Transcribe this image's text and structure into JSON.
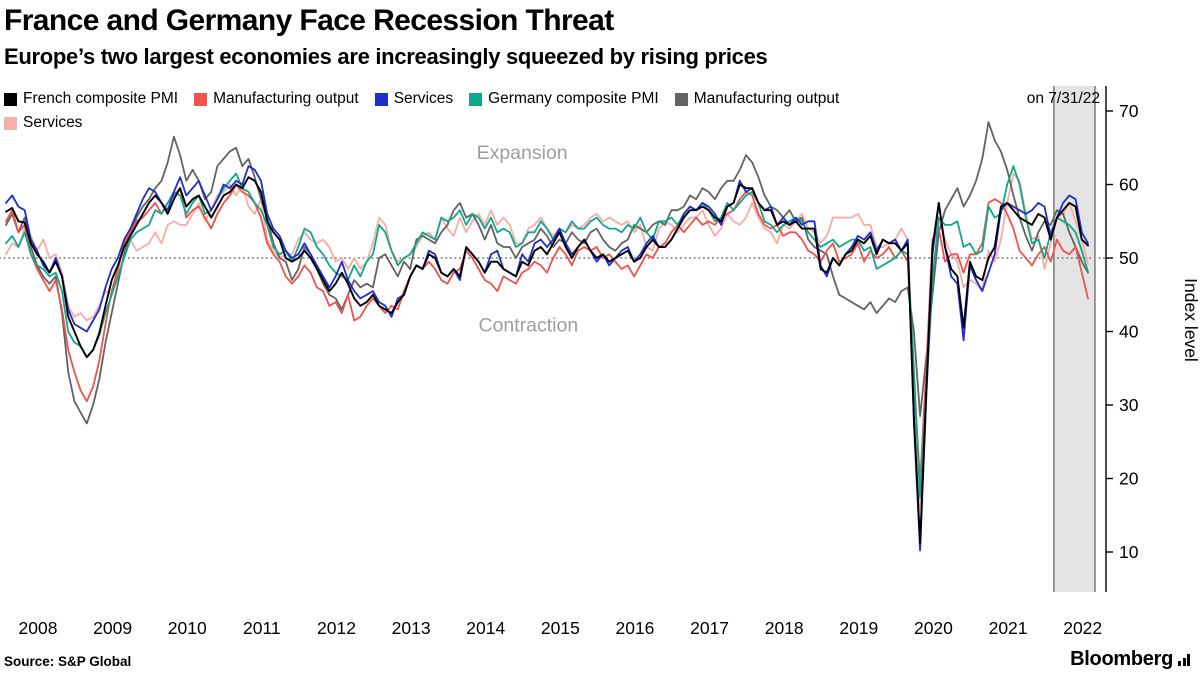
{
  "header": {
    "title": "France and Germany Face Recession Threat",
    "subtitle": "Europe’s two largest economies are increasingly squeezed by rising prices"
  },
  "legend": {
    "asof": "on 7/31/22"
  },
  "footer": {
    "source": "Source: S&P Global",
    "brand": "Bloomberg"
  },
  "chart_data": {
    "type": "line",
    "title": "France and Germany Face Recession Threat",
    "subtitle": "Europe’s two largest economies are increasingly squeezed by rising prices",
    "x": {
      "start": "2008-01",
      "end": "2022-07",
      "frequency": "monthly"
    },
    "years": [
      2008,
      2009,
      2010,
      2011,
      2012,
      2013,
      2014,
      2015,
      2016,
      2017,
      2018,
      2019,
      2020,
      2021,
      2022
    ],
    "yticks": [
      10,
      20,
      30,
      40,
      50,
      60,
      70
    ],
    "ylim": [
      8,
      73
    ],
    "ylabel": "Index level",
    "reference_line": 50,
    "grid": "off",
    "legend_position": "top",
    "as_of_label": "on 7/31/22",
    "annotations": [
      {
        "text": "Expansion",
        "month_index": 83,
        "value": 63.5
      },
      {
        "text": "Contraction",
        "month_index": 84,
        "value": 40.0
      }
    ],
    "highlight_band": {
      "start_index": 169,
      "color": "#e4e4e4",
      "border_color": "#3c3c3c"
    },
    "draw_order": [
      5,
      4,
      1,
      3,
      2,
      0
    ],
    "series": [
      {
        "name": "French composite PMI",
        "color": "#000000",
        "width": 1.9,
        "values": [
          56.3,
          56.8,
          55.0,
          54.8,
          52.0,
          50.5,
          49.5,
          48.0,
          49.5,
          47.5,
          42.0,
          40.0,
          38.0,
          36.5,
          37.5,
          39.8,
          43.5,
          47.0,
          49.0,
          51.5,
          53.0,
          54.5,
          56.0,
          57.5,
          58.5,
          57.5,
          56.0,
          58.0,
          59.5,
          57.0,
          58.0,
          58.5,
          57.0,
          55.5,
          57.0,
          58.5,
          59.0,
          60.0,
          59.5,
          61.0,
          60.5,
          59.0,
          55.0,
          53.5,
          52.5,
          50.0,
          49.5,
          50.0,
          51.0,
          50.0,
          48.5,
          47.0,
          45.5,
          46.5,
          48.0,
          46.5,
          44.5,
          43.5,
          44.0,
          45.0,
          43.5,
          43.0,
          42.5,
          44.0,
          45.0,
          47.5,
          49.0,
          48.5,
          50.5,
          50.0,
          48.0,
          47.5,
          48.5,
          47.5,
          51.5,
          50.5,
          49.5,
          48.0,
          49.5,
          49.5,
          48.5,
          48.0,
          47.5,
          49.5,
          49.0,
          51.0,
          51.5,
          50.5,
          52.0,
          53.5,
          51.5,
          50.0,
          51.5,
          52.5,
          51.0,
          50.0,
          50.5,
          49.5,
          50.0,
          50.5,
          51.0,
          49.5,
          50.0,
          51.5,
          52.5,
          51.5,
          51.5,
          52.5,
          54.0,
          55.5,
          56.5,
          56.5,
          57.0,
          56.5,
          55.5,
          55.0,
          57.0,
          57.5,
          60.0,
          59.5,
          59.5,
          57.5,
          56.5,
          56.5,
          54.5,
          55.0,
          54.5,
          55.0,
          54.0,
          54.0,
          54.0,
          48.5,
          48.0,
          50.0,
          49.0,
          50.5,
          51.0,
          52.5,
          52.0,
          53.0,
          50.5,
          52.5,
          52.0,
          52.0,
          51.0,
          52.0,
          28.5,
          11.2,
          32.0,
          51.5,
          57.5,
          51.5,
          48.5,
          47.5,
          40.5,
          49.5,
          47.5,
          47.0,
          50.0,
          51.5,
          57.0,
          57.5,
          56.5,
          55.5,
          55.0,
          54.5,
          56.0,
          55.5,
          52.5,
          55.5,
          56.5,
          57.5,
          57.0,
          52.5,
          51.7
        ]
      },
      {
        "name": "Manufacturing output",
        "color": "#f0524c",
        "width": 1.8,
        "values": [
          55.0,
          56.5,
          53.5,
          54.5,
          50.5,
          48.5,
          47.0,
          45.5,
          47.0,
          43.0,
          37.5,
          34.5,
          32.0,
          30.5,
          32.5,
          36.0,
          41.0,
          45.5,
          48.5,
          52.0,
          53.5,
          55.0,
          55.5,
          56.5,
          57.5,
          56.0,
          57.5,
          58.5,
          59.5,
          55.5,
          56.5,
          57.0,
          55.5,
          54.0,
          56.0,
          57.5,
          58.5,
          60.0,
          59.0,
          58.5,
          57.5,
          55.5,
          52.0,
          50.5,
          49.5,
          47.5,
          46.5,
          47.5,
          49.0,
          48.0,
          46.0,
          45.5,
          43.5,
          44.0,
          42.5,
          45.0,
          41.5,
          42.0,
          43.5,
          44.5,
          43.5,
          42.5,
          43.5,
          43.0,
          45.5,
          47.5,
          49.0,
          48.5,
          49.5,
          48.5,
          47.0,
          46.5,
          48.0,
          48.5,
          51.0,
          50.0,
          48.5,
          47.0,
          46.5,
          45.5,
          47.5,
          47.0,
          46.5,
          48.0,
          48.5,
          49.5,
          49.0,
          48.0,
          50.0,
          51.5,
          50.5,
          49.0,
          51.0,
          51.5,
          51.0,
          51.5,
          50.0,
          50.5,
          49.5,
          48.5,
          49.0,
          47.5,
          49.0,
          50.5,
          50.0,
          51.5,
          52.0,
          53.5,
          54.5,
          53.5,
          54.5,
          55.5,
          54.5,
          55.0,
          54.5,
          55.5,
          56.0,
          56.5,
          58.0,
          59.0,
          58.5,
          56.0,
          54.5,
          54.0,
          54.5,
          53.0,
          53.5,
          53.5,
          52.5,
          51.0,
          50.5,
          49.5,
          51.0,
          52.0,
          49.5,
          50.0,
          50.5,
          52.0,
          49.5,
          51.0,
          50.0,
          50.5,
          51.5,
          50.0,
          51.0,
          49.5,
          33.5,
          19.5,
          35.0,
          52.5,
          54.0,
          49.5,
          50.5,
          50.5,
          48.0,
          50.5,
          50.5,
          52.0,
          57.5,
          58.0,
          57.5,
          56.0,
          54.0,
          51.0,
          50.0,
          49.0,
          50.5,
          51.5,
          49.5,
          52.5,
          51.0,
          50.5,
          51.5,
          48.0,
          44.5
        ]
      },
      {
        "name": "Services",
        "color": "#1f2dce",
        "width": 1.8,
        "values": [
          57.5,
          58.5,
          57.0,
          56.5,
          52.5,
          51.0,
          49.0,
          48.0,
          50.0,
          47.5,
          43.0,
          41.0,
          40.5,
          40.0,
          41.5,
          43.0,
          46.0,
          48.5,
          50.0,
          52.5,
          54.0,
          56.0,
          58.0,
          59.5,
          59.0,
          57.5,
          56.5,
          59.0,
          61.0,
          58.5,
          59.5,
          60.5,
          58.5,
          56.5,
          58.0,
          60.0,
          59.5,
          60.5,
          60.0,
          62.5,
          62.0,
          60.5,
          56.0,
          54.0,
          53.0,
          51.0,
          50.0,
          50.5,
          52.0,
          50.5,
          49.0,
          47.5,
          46.0,
          47.5,
          49.5,
          47.0,
          45.5,
          44.5,
          45.0,
          45.5,
          44.0,
          43.5,
          42.0,
          44.5,
          45.0,
          47.5,
          49.0,
          48.5,
          51.0,
          50.5,
          48.0,
          47.5,
          48.5,
          47.0,
          51.5,
          50.5,
          49.5,
          48.0,
          50.5,
          51.0,
          48.5,
          48.0,
          47.5,
          50.5,
          49.5,
          52.0,
          52.5,
          51.5,
          52.5,
          54.0,
          52.0,
          50.5,
          51.5,
          52.5,
          51.0,
          49.5,
          50.5,
          49.0,
          50.0,
          51.0,
          51.5,
          49.5,
          50.5,
          52.0,
          53.0,
          51.5,
          51.5,
          52.5,
          54.0,
          56.0,
          57.0,
          56.5,
          57.5,
          57.0,
          56.0,
          54.5,
          57.0,
          57.5,
          60.5,
          59.0,
          59.5,
          57.5,
          56.5,
          57.0,
          54.5,
          55.5,
          54.5,
          55.5,
          54.5,
          55.0,
          55.0,
          49.0,
          47.5,
          50.0,
          49.0,
          50.5,
          51.5,
          53.0,
          52.5,
          53.5,
          51.0,
          52.5,
          52.0,
          52.5,
          51.0,
          52.5,
          27.5,
          10.2,
          31.0,
          50.5,
          57.5,
          51.5,
          47.5,
          46.5,
          38.8,
          49.0,
          47.0,
          45.5,
          48.0,
          50.5,
          56.5,
          57.5,
          57.0,
          56.5,
          56.0,
          56.5,
          57.5,
          57.0,
          53.0,
          55.5,
          57.5,
          58.5,
          58.0,
          53.5,
          52.0
        ]
      },
      {
        "name": "Germany composite PMI",
        "color": "#0ea88a",
        "width": 1.8,
        "values": [
          52.0,
          53.0,
          51.5,
          53.5,
          50.5,
          49.0,
          48.5,
          47.5,
          48.0,
          45.5,
          40.0,
          38.5,
          38.0,
          36.5,
          37.5,
          39.5,
          42.5,
          45.0,
          47.5,
          50.0,
          52.5,
          53.5,
          54.0,
          54.5,
          56.5,
          56.0,
          57.5,
          59.0,
          58.5,
          56.0,
          57.5,
          58.5,
          56.0,
          56.5,
          58.0,
          59.5,
          60.5,
          61.5,
          59.5,
          59.0,
          57.5,
          56.5,
          54.5,
          51.5,
          50.5,
          51.0,
          49.5,
          51.5,
          54.0,
          53.5,
          51.5,
          50.5,
          49.0,
          48.0,
          47.5,
          47.0,
          49.0,
          47.5,
          49.5,
          50.5,
          54.5,
          53.5,
          51.0,
          49.0,
          50.0,
          50.5,
          52.0,
          53.5,
          53.0,
          52.5,
          55.5,
          55.0,
          55.5,
          56.5,
          54.5,
          56.0,
          55.5,
          54.0,
          55.5,
          53.5,
          54.0,
          53.5,
          51.5,
          52.0,
          53.5,
          53.5,
          55.0,
          54.0,
          52.5,
          54.0,
          53.5,
          55.0,
          54.0,
          54.0,
          55.0,
          55.5,
          54.5,
          54.0,
          54.0,
          53.5,
          54.5,
          54.0,
          55.5,
          53.5,
          52.5,
          55.0,
          55.0,
          55.5,
          54.5,
          56.0,
          57.0,
          56.5,
          57.5,
          56.5,
          55.0,
          55.5,
          57.5,
          56.5,
          57.5,
          58.5,
          59.0,
          57.5,
          55.0,
          54.5,
          53.5,
          54.5,
          55.0,
          55.5,
          55.0,
          53.5,
          52.5,
          51.5,
          52.0,
          52.5,
          51.5,
          52.0,
          52.5,
          52.5,
          51.0,
          51.5,
          48.5,
          49.0,
          49.5,
          50.0,
          51.0,
          50.5,
          35.0,
          17.4,
          32.0,
          47.0,
          55.5,
          54.5,
          54.5,
          55.0,
          51.5,
          52.0,
          50.5,
          51.0,
          57.0,
          55.5,
          56.0,
          60.0,
          62.5,
          60.0,
          55.5,
          52.0,
          52.5,
          50.0,
          53.5,
          55.5,
          55.0,
          54.5,
          53.5,
          51.0,
          48.1
        ]
      },
      {
        "name": "Manufacturing output",
        "color": "#636363",
        "width": 1.8,
        "values": [
          54.5,
          56.0,
          53.5,
          55.5,
          51.5,
          49.0,
          47.5,
          46.5,
          47.5,
          42.5,
          34.5,
          30.5,
          29.0,
          27.5,
          30.0,
          33.5,
          38.5,
          42.5,
          46.5,
          50.5,
          53.5,
          55.5,
          57.0,
          58.0,
          59.5,
          60.5,
          63.0,
          66.5,
          64.0,
          60.5,
          62.0,
          60.5,
          58.0,
          59.0,
          62.5,
          63.5,
          64.5,
          65.0,
          62.5,
          63.5,
          61.0,
          58.0,
          55.5,
          52.0,
          50.0,
          49.5,
          47.0,
          48.5,
          51.5,
          50.5,
          48.5,
          46.5,
          45.0,
          44.5,
          43.0,
          45.0,
          47.0,
          46.0,
          46.5,
          46.0,
          50.0,
          50.5,
          49.0,
          47.5,
          49.5,
          48.5,
          52.5,
          53.0,
          52.5,
          52.0,
          53.5,
          54.5,
          56.5,
          57.5,
          55.5,
          56.0,
          54.5,
          52.5,
          54.5,
          52.0,
          51.5,
          51.5,
          50.0,
          51.5,
          52.0,
          52.5,
          54.0,
          53.0,
          51.5,
          52.5,
          52.0,
          53.5,
          52.5,
          52.0,
          53.5,
          54.0,
          52.5,
          51.5,
          51.0,
          52.0,
          52.5,
          54.5,
          54.0,
          53.5,
          54.5,
          55.0,
          54.5,
          56.5,
          56.5,
          57.0,
          58.5,
          58.0,
          59.5,
          59.0,
          58.0,
          59.5,
          60.5,
          60.5,
          62.0,
          64.0,
          63.0,
          61.0,
          58.5,
          57.0,
          56.5,
          55.5,
          56.5,
          55.0,
          55.5,
          52.5,
          51.5,
          51.0,
          50.5,
          47.5,
          45.0,
          44.5,
          44.0,
          43.5,
          43.0,
          44.0,
          42.5,
          43.5,
          44.5,
          44.0,
          45.5,
          46.0,
          40.0,
          28.5,
          36.5,
          45.0,
          53.5,
          56.5,
          58.0,
          59.5,
          57.0,
          58.5,
          60.5,
          63.5,
          68.5,
          66.0,
          64.5,
          62.0,
          58.5,
          55.5,
          53.0,
          51.0,
          53.5,
          55.0,
          54.5,
          56.5,
          56.0,
          53.5,
          51.5,
          49.5,
          48.0
        ]
      },
      {
        "name": "Services",
        "color": "#f6b0ab",
        "width": 1.9,
        "values": [
          50.5,
          52.0,
          51.5,
          54.0,
          53.0,
          51.0,
          52.5,
          50.0,
          50.5,
          48.0,
          43.5,
          42.0,
          42.5,
          41.5,
          42.0,
          43.5,
          45.5,
          45.0,
          48.0,
          52.0,
          52.5,
          51.0,
          51.5,
          52.0,
          53.5,
          52.0,
          54.5,
          55.0,
          54.5,
          54.5,
          56.0,
          57.5,
          55.0,
          56.5,
          58.5,
          59.0,
          60.0,
          58.5,
          60.0,
          57.0,
          56.0,
          58.0,
          52.5,
          51.0,
          50.0,
          50.5,
          50.5,
          52.5,
          53.5,
          52.5,
          52.0,
          52.5,
          51.5,
          49.5,
          50.0,
          48.5,
          50.0,
          48.5,
          49.5,
          52.0,
          55.5,
          54.5,
          51.0,
          49.5,
          50.0,
          50.5,
          51.5,
          53.0,
          53.5,
          52.5,
          55.5,
          54.0,
          53.0,
          55.5,
          53.5,
          55.0,
          56.0,
          54.5,
          56.5,
          54.5,
          55.5,
          54.5,
          52.0,
          52.0,
          54.0,
          54.5,
          55.5,
          54.0,
          53.0,
          54.0,
          53.5,
          54.5,
          54.0,
          54.5,
          55.5,
          56.0,
          55.0,
          55.5,
          55.0,
          54.5,
          55.0,
          53.5,
          54.5,
          51.5,
          51.0,
          54.0,
          55.0,
          54.5,
          53.5,
          54.5,
          55.5,
          55.5,
          56.5,
          54.5,
          53.0,
          54.0,
          56.0,
          55.0,
          54.5,
          55.5,
          57.5,
          55.5,
          54.0,
          53.5,
          52.0,
          54.5,
          54.0,
          55.0,
          56.0,
          54.0,
          53.5,
          52.0,
          53.0,
          55.5,
          55.5,
          55.5,
          55.5,
          56.0,
          54.5,
          54.5,
          51.5,
          51.5,
          52.0,
          52.5,
          54.0,
          52.5,
          31.5,
          16.2,
          31.5,
          46.5,
          55.5,
          52.5,
          50.5,
          49.5,
          46.0,
          47.0,
          46.5,
          45.5,
          51.0,
          49.5,
          52.5,
          57.5,
          61.5,
          60.5,
          56.0,
          52.5,
          53.0,
          48.5,
          52.0,
          55.5,
          56.0,
          57.5,
          55.0,
          52.5,
          49.2
        ]
      }
    ]
  }
}
